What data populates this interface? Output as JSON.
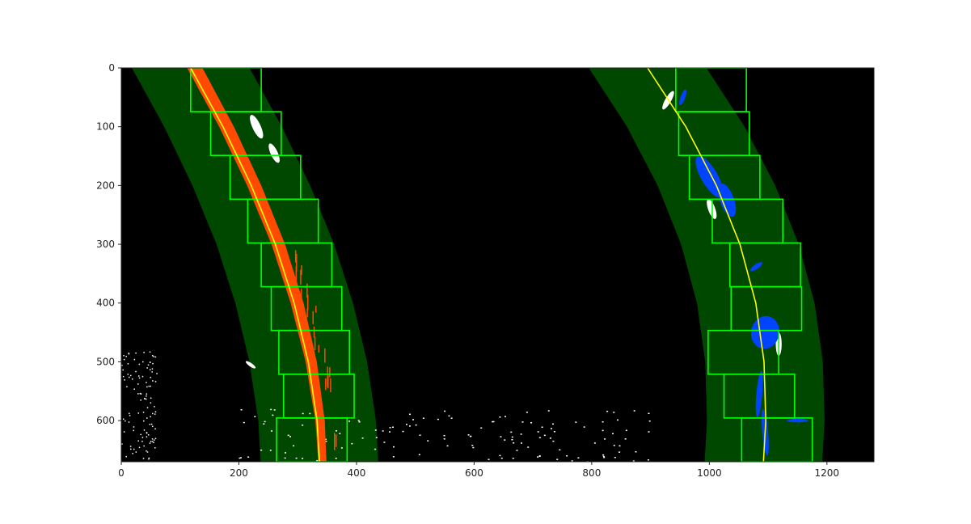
{
  "chart_data": {
    "type": "image",
    "title": "",
    "xlabel": "",
    "ylabel": "",
    "xlim": [
      0,
      1280
    ],
    "ylim": [
      670,
      0
    ],
    "x_ticks": [
      0,
      200,
      400,
      600,
      800,
      1000,
      1200
    ],
    "y_ticks": [
      0,
      100,
      200,
      300,
      400,
      500,
      600
    ],
    "grid": false,
    "lane_halfwidth": 100,
    "windows": {
      "count": 9,
      "half_width": 60,
      "left_centers": [
        178,
        212,
        245,
        275,
        298,
        315,
        328,
        336,
        324
      ],
      "right_centers": [
        1003,
        1008,
        1026,
        1065,
        1095,
        1097,
        1058,
        1085,
        1115
      ]
    },
    "fits": {
      "left": {
        "y": [
          0,
          100,
          200,
          300,
          400,
          500,
          600,
          670
        ],
        "x": [
          118,
          173,
          221,
          262,
          294,
          318,
          333,
          337
        ]
      },
      "right": {
        "y": [
          0,
          100,
          200,
          300,
          400,
          500,
          600,
          670
        ],
        "x": [
          895,
          960,
          1012,
          1052,
          1079,
          1093,
          1096,
          1092
        ]
      }
    },
    "left_pixels": {
      "center": {
        "y": [
          0,
          100,
          200,
          300,
          400,
          500,
          600,
          670
        ],
        "x": [
          125,
          179,
          226,
          267,
          299,
          323,
          338,
          342
        ]
      },
      "widths": {
        "y": [
          0,
          200,
          400,
          600,
          670
        ],
        "w": [
          26,
          24,
          22,
          16,
          14
        ]
      }
    },
    "right_pixels": [
      {
        "cx": 955,
        "cy": 50,
        "rx": 4,
        "ry": 14,
        "rot": 20
      },
      {
        "cx": 1000,
        "cy": 185,
        "rx": 14,
        "ry": 40,
        "rot": -30
      },
      {
        "cx": 1030,
        "cy": 225,
        "rx": 12,
        "ry": 30,
        "rot": -20
      },
      {
        "cx": 1080,
        "cy": 338,
        "rx": 4,
        "ry": 12,
        "rot": 55
      },
      {
        "cx": 1095,
        "cy": 450,
        "rx": 24,
        "ry": 28,
        "rot": 10
      },
      {
        "cx": 1085,
        "cy": 555,
        "rx": 5,
        "ry": 40,
        "rot": 5
      },
      {
        "cx": 1095,
        "cy": 620,
        "rx": 5,
        "ry": 40,
        "rot": -5
      },
      {
        "cx": 1150,
        "cy": 600,
        "rx": 18,
        "ry": 3,
        "rot": 0
      }
    ],
    "white_pixels": [
      {
        "cx": 930,
        "cy": 55,
        "rx": 5,
        "ry": 18,
        "rot": 30
      },
      {
        "cx": 1004,
        "cy": 240,
        "rx": 6,
        "ry": 18,
        "rot": -20
      },
      {
        "cx": 1118,
        "cy": 470,
        "rx": 5,
        "ry": 20,
        "rot": 0
      },
      {
        "cx": 230,
        "cy": 100,
        "rx": 7,
        "ry": 22,
        "rot": -25
      },
      {
        "cx": 260,
        "cy": 145,
        "rx": 6,
        "ry": 18,
        "rot": -25
      },
      {
        "cx": 220,
        "cy": 505,
        "rx": 10,
        "ry": 3,
        "rot": 35
      }
    ],
    "colors": {
      "background": "#000000",
      "lane_band": "#004700",
      "window": "#00ff00",
      "fit_line": "#ffff00",
      "left_pixels": "#ff4a00",
      "right_pixels": "#0044ff",
      "noise": "#ffffff"
    }
  }
}
